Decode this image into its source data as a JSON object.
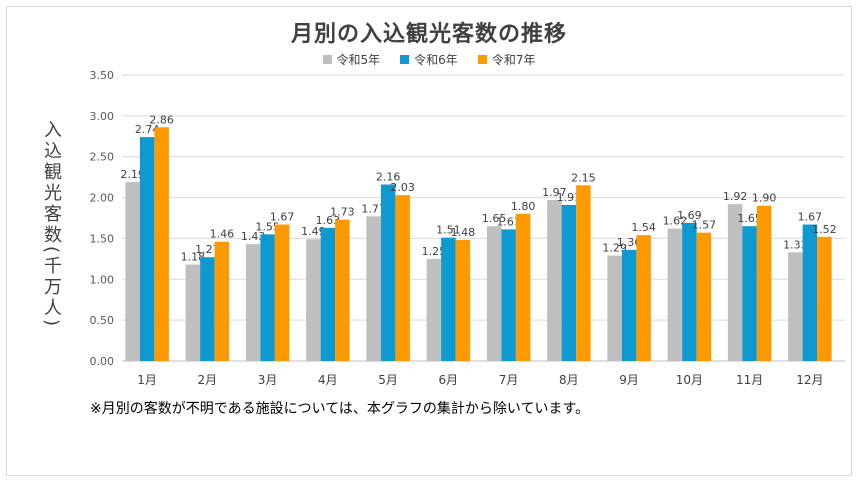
{
  "chart_data": {
    "type": "bar",
    "title": "月別の入込観光客数の推移",
    "ylabel": "入込観光客数(千万人)",
    "xlabel": "",
    "ylim": [
      0,
      3.5
    ],
    "yticks": [
      "0.00",
      "0.50",
      "1.00",
      "1.50",
      "2.00",
      "2.50",
      "3.00",
      "3.50"
    ],
    "grid": true,
    "legend_position": "top",
    "categories": [
      "1月",
      "2月",
      "3月",
      "4月",
      "5月",
      "6月",
      "7月",
      "8月",
      "9月",
      "10月",
      "11月",
      "12月"
    ],
    "series": [
      {
        "name": "令和5年",
        "color": "#bfbfbf",
        "values": [
          2.19,
          1.18,
          1.43,
          1.49,
          1.77,
          1.25,
          1.65,
          1.97,
          1.29,
          1.62,
          1.92,
          1.33
        ]
      },
      {
        "name": "令和6年",
        "color": "#0e9ad0",
        "values": [
          2.74,
          1.27,
          1.55,
          1.63,
          2.16,
          1.51,
          1.61,
          1.91,
          1.36,
          1.69,
          1.65,
          1.67
        ]
      },
      {
        "name": "令和7年",
        "color": "#ff9900",
        "values": [
          2.86,
          1.46,
          1.67,
          1.73,
          2.03,
          1.48,
          1.8,
          2.15,
          1.54,
          1.57,
          1.9,
          1.52
        ]
      }
    ]
  },
  "footnote": "※月別の客数が不明である施設については、本グラフの集計から除いています。"
}
